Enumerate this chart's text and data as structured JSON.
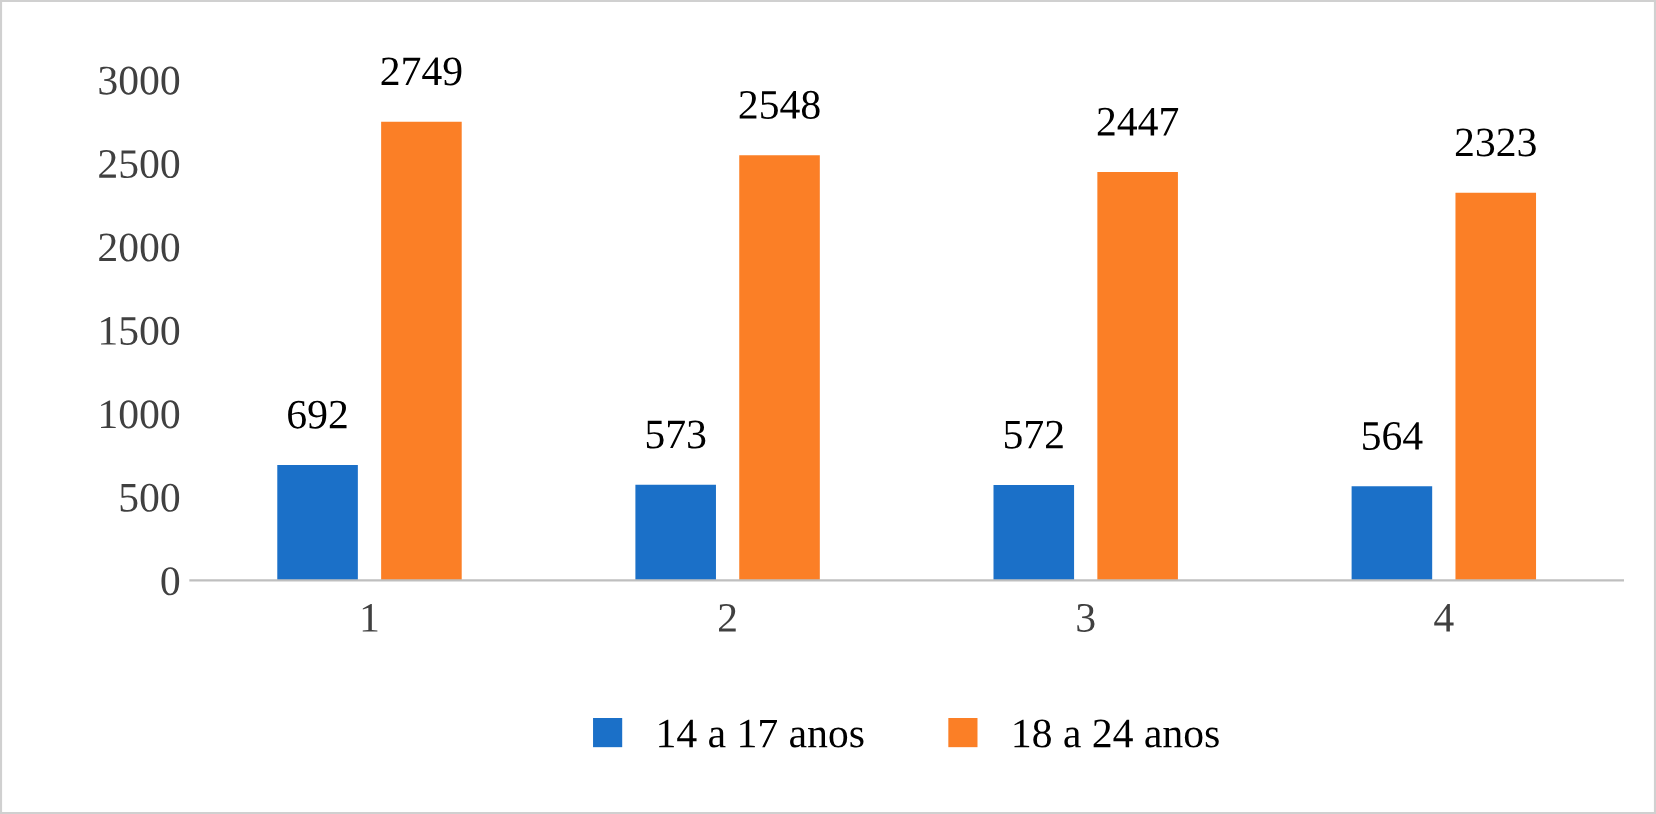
{
  "chart_data": {
    "type": "bar",
    "categories": [
      "1",
      "2",
      "3",
      "4"
    ],
    "series": [
      {
        "name": "14 a 17 anos",
        "color": "#1b70c8",
        "values": [
          692,
          573,
          572,
          564
        ]
      },
      {
        "name": "18 a 24 anos",
        "color": "#fb7f26",
        "values": [
          2749,
          2548,
          2447,
          2323
        ]
      }
    ],
    "ylim": [
      0,
      3000
    ],
    "yticks": [
      0,
      500,
      1000,
      1500,
      2000,
      2500,
      3000
    ],
    "grid": false,
    "legend": "bottom",
    "data_labels": true
  }
}
